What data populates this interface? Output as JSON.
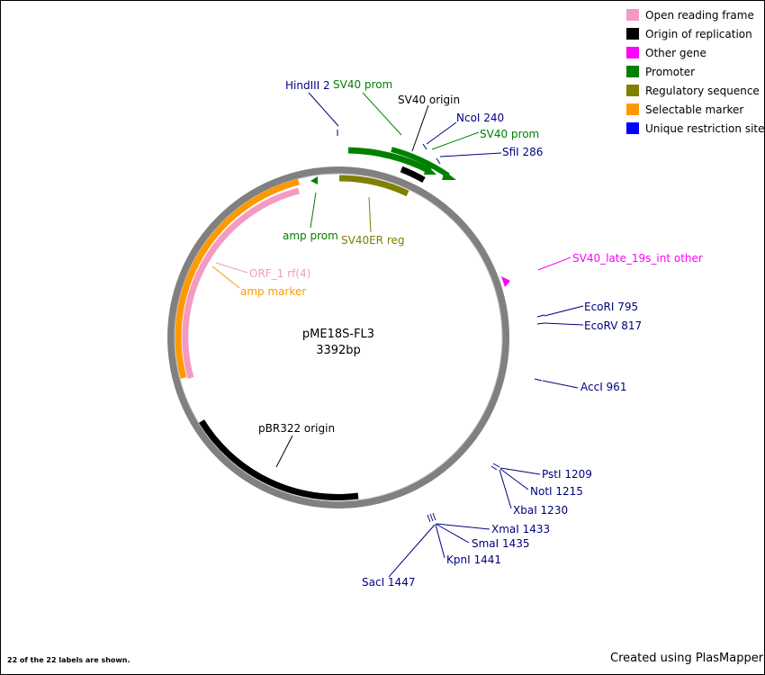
{
  "plasmid": {
    "name": "pME18S-FL3",
    "size": "3392bp"
  },
  "legend": [
    {
      "label": "Open reading frame",
      "color": "#f49ac2"
    },
    {
      "label": "Origin of replication",
      "color": "#000000"
    },
    {
      "label": "Other gene",
      "color": "#ff00ff"
    },
    {
      "label": "Promoter",
      "color": "#008000"
    },
    {
      "label": "Regulatory sequence",
      "color": "#808000"
    },
    {
      "label": "Selectable marker",
      "color": "#ff9900"
    },
    {
      "label": "Unique restriction site",
      "color": "#0000ff"
    }
  ],
  "features": {
    "hindiii": "HindIII 2",
    "sv40_prom_a": "SV40 prom",
    "sv40_origin": "SV40 origin",
    "ncoi": "NcoI 240",
    "sv40_prom_b": "SV40 prom",
    "sfii": "SfiI 286",
    "amp_prom": "amp prom",
    "sv40er_reg": "SV40ER reg",
    "sv40_late": "SV40_late_19s_int other",
    "ecori": "EcoRI 795",
    "ecorv": "EcoRV 817",
    "orf1": "ORF_1 rf(4)",
    "amp_marker": "amp marker",
    "acci": "AccI 961",
    "pbr322": "pBR322 origin",
    "psti": "PstI 1209",
    "noti": "NotI 1215",
    "xbai": "XbaI 1230",
    "xmai": "XmaI 1433",
    "smai": "SmaI 1435",
    "kpni": "KpnI 1441",
    "saci": "SacI 1447"
  },
  "colors": {
    "restriction": "#000080",
    "promoter": "#008000",
    "regulatory": "#808000",
    "other": "#ff00ff",
    "orf": "#f49ac2",
    "marker": "#ff9900",
    "backbone": "#808080"
  },
  "footer": {
    "labels_shown": "22 of the 22 labels are shown.",
    "credit": "Created using PlasMapper"
  }
}
